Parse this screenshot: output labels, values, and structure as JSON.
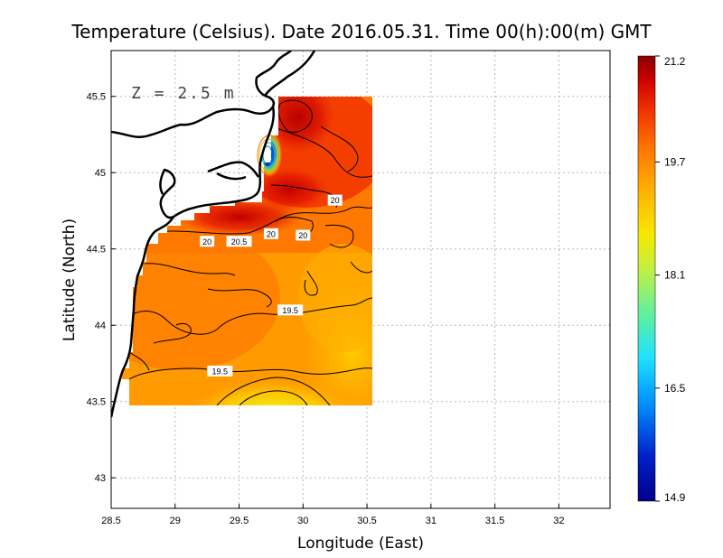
{
  "chart_data": {
    "type": "heatmap",
    "title": "Temperature (Celsius). Date 2016.05.31. Time 00(h):00(m) GMT",
    "xlabel": "Longitude (East)",
    "ylabel": "Latitude (North)",
    "xlim": [
      28.5,
      32.4
    ],
    "ylim": [
      42.8,
      45.8
    ],
    "xticks": [
      "28.5",
      "29",
      "29.5",
      "30",
      "30.5",
      "31",
      "31.5",
      "32"
    ],
    "yticks": [
      "43",
      "43.5",
      "44",
      "44.5",
      "45",
      "45.5"
    ],
    "grid": true,
    "annotation": "Z = 2.5 m",
    "colorbar": {
      "min": 14.9,
      "max": 21.2,
      "tick_labels": [
        "21.2",
        "19.7",
        "18.1",
        "16.5",
        "14.9"
      ],
      "tick_values": [
        21.2,
        19.7,
        18.1,
        16.5,
        14.9
      ]
    },
    "contour_labels": [
      {
        "text": "20",
        "lon": 30.25,
        "lat": 44.82
      },
      {
        "text": "20",
        "lon": 29.75,
        "lat": 44.6
      },
      {
        "text": "20",
        "lon": 30.0,
        "lat": 44.59
      },
      {
        "text": "20",
        "lon": 29.25,
        "lat": 44.55
      },
      {
        "text": "20.5",
        "lon": 29.5,
        "lat": 44.55
      },
      {
        "text": "19.5",
        "lon": 29.9,
        "lat": 44.1
      },
      {
        "text": "19.5",
        "lon": 29.35,
        "lat": 43.7
      }
    ],
    "field_samples": [
      {
        "lon": 29.85,
        "lat": 45.35,
        "value": 21.0
      },
      {
        "lon": 29.65,
        "lat": 44.8,
        "value": 21.1
      },
      {
        "lon": 29.7,
        "lat": 45.1,
        "value": 15.2
      },
      {
        "lon": 30.2,
        "lat": 45.1,
        "value": 20.2
      },
      {
        "lon": 29.2,
        "lat": 44.35,
        "value": 20.2
      },
      {
        "lon": 30.3,
        "lat": 44.4,
        "value": 19.9
      },
      {
        "lon": 29.1,
        "lat": 43.95,
        "value": 19.8
      },
      {
        "lon": 30.4,
        "lat": 43.95,
        "value": 19.2
      },
      {
        "lon": 29.85,
        "lat": 43.55,
        "value": 18.7
      },
      {
        "lon": 28.7,
        "lat": 43.6,
        "value": 19.2
      }
    ]
  },
  "colors": {
    "background": "#ffffff",
    "coast": "#000000",
    "grid": "#b8b8b8"
  }
}
